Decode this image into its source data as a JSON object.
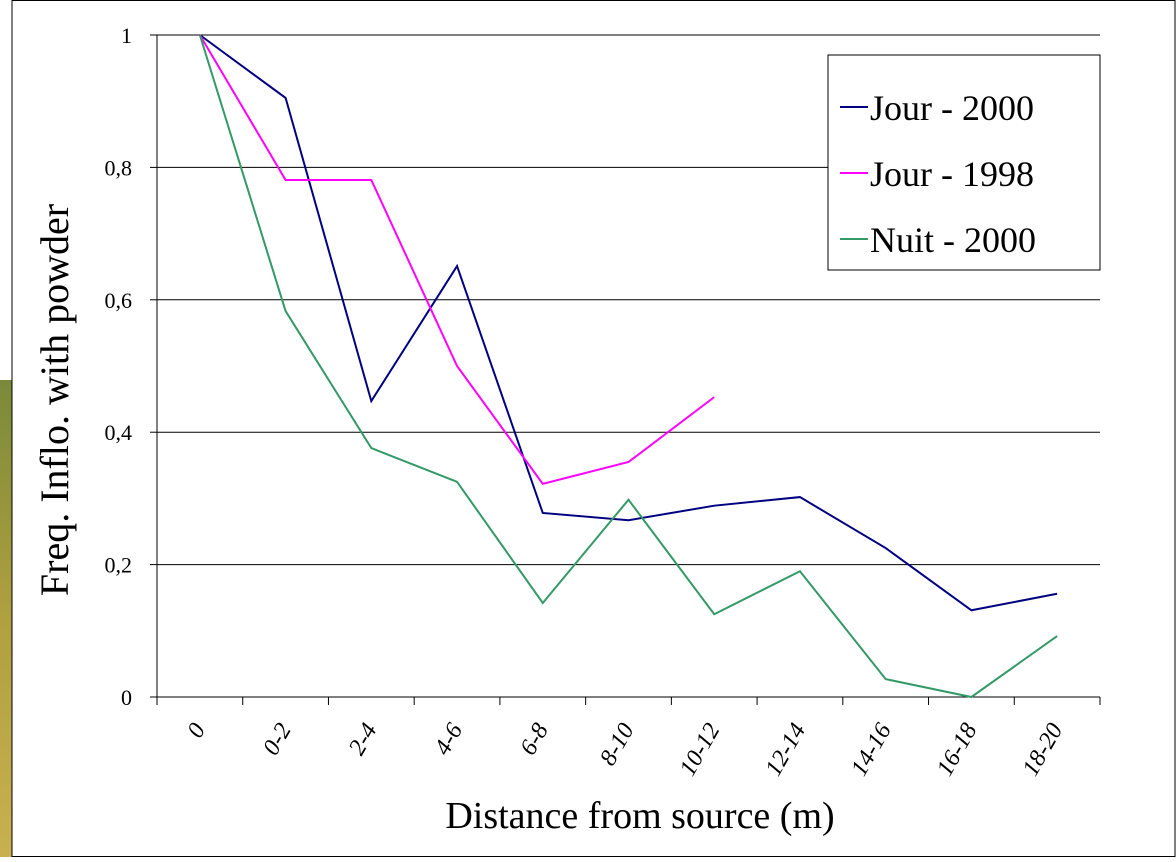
{
  "chart_data": {
    "type": "line",
    "x_label": "Distance from source  (m)",
    "y_label": "Freq. Inflo. with powder",
    "categories": [
      "0",
      "0-2",
      "2-4",
      "4-6",
      "6-8",
      "8-10",
      "10-12",
      "12-14",
      "14-16",
      "16-18",
      "18-20"
    ],
    "series": [
      {
        "name": "Jour - 2000",
        "color": "#000080",
        "values": [
          1,
          0.905,
          0.447,
          0.651,
          0.278,
          0.267,
          0.289,
          0.302,
          0.225,
          0.131,
          0.156
        ]
      },
      {
        "name": "Jour - 1998",
        "color": "#ff00ff",
        "values": [
          1,
          0.781,
          0.781,
          0.5,
          0.322,
          0.355,
          0.453,
          null,
          null,
          null,
          null
        ]
      },
      {
        "name": "Nuit - 2000",
        "color": "#339966",
        "values": [
          1,
          0.583,
          0.376,
          0.325,
          0.142,
          0.298,
          0.125,
          0.19,
          0.027,
          0,
          0.092
        ]
      }
    ],
    "ylim": [
      0,
      1
    ],
    "yticks": [
      0,
      {
        "value": 0.2,
        "label": "0,2"
      },
      {
        "value": 0.4,
        "label": "0,4"
      },
      {
        "value": 0.6,
        "label": "0,6"
      },
      {
        "value": 0.8,
        "label": "0,8"
      },
      1
    ],
    "grid": true,
    "legend": "upper right"
  }
}
